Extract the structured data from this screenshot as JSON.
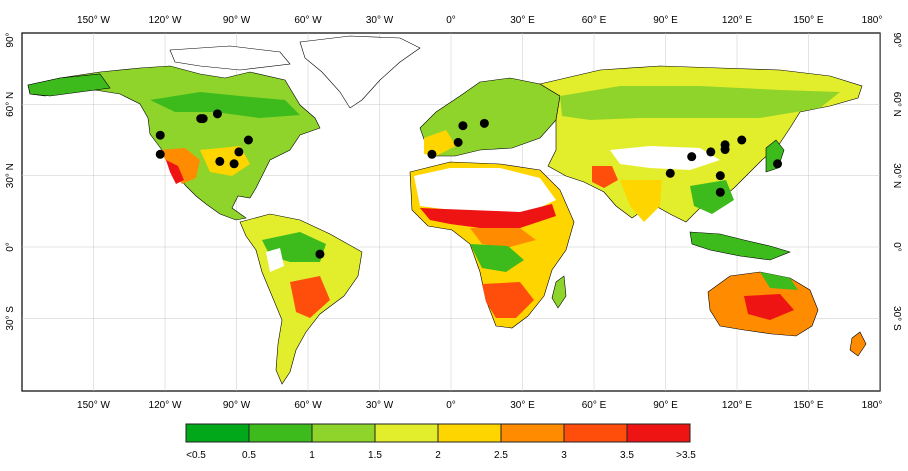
{
  "map": {
    "top_lon_labels": [
      "150° W",
      "120° W",
      "90° W",
      "60° W",
      "30° W",
      "0°",
      "30° E",
      "60° E",
      "90° E",
      "120° E",
      "150° E",
      "180°"
    ],
    "bottom_lon_labels": [
      "150° W",
      "120° W",
      "90° W",
      "60° W",
      "30° W",
      "0°",
      "30° E",
      "60° E",
      "90° E",
      "120° E",
      "150° E",
      "180°"
    ],
    "left_lat_labels": [
      "90°",
      "60° N",
      "30° N",
      "0°",
      "30° S"
    ],
    "right_lat_labels": [
      "90°",
      "60° N",
      "30° N",
      "0°",
      "30° S"
    ]
  },
  "legend": {
    "bins": [
      {
        "color": "#00a81a"
      },
      {
        "color": "#3dbb1d"
      },
      {
        "color": "#8fd42a"
      },
      {
        "color": "#e2ee2c"
      },
      {
        "color": "#ffd500"
      },
      {
        "color": "#ff8c00"
      },
      {
        "color": "#ff4e0c"
      },
      {
        "color": "#ef1414"
      }
    ],
    "labels": [
      "<0.5",
      "0.5",
      "1",
      "1.5",
      "2",
      "2.5",
      "3",
      "3.5",
      ">3.5"
    ]
  },
  "sites": [
    {
      "lon": -122,
      "lat": 47
    },
    {
      "lon": -122,
      "lat": 39
    },
    {
      "lon": -105,
      "lat": 54
    },
    {
      "lon": -104,
      "lat": 54
    },
    {
      "lon": -98,
      "lat": 56
    },
    {
      "lon": -85,
      "lat": 45
    },
    {
      "lon": -89,
      "lat": 40
    },
    {
      "lon": -97,
      "lat": 36
    },
    {
      "lon": -91,
      "lat": 35
    },
    {
      "lon": -55,
      "lat": -3
    },
    {
      "lon": -8,
      "lat": 39
    },
    {
      "lon": 3,
      "lat": 44
    },
    {
      "lon": 5,
      "lat": 51
    },
    {
      "lon": 14,
      "lat": 52
    },
    {
      "lon": 92,
      "lat": 31
    },
    {
      "lon": 101,
      "lat": 38
    },
    {
      "lon": 109,
      "lat": 40
    },
    {
      "lon": 115,
      "lat": 43
    },
    {
      "lon": 115,
      "lat": 41
    },
    {
      "lon": 122,
      "lat": 45
    },
    {
      "lon": 113,
      "lat": 30
    },
    {
      "lon": 113,
      "lat": 23
    },
    {
      "lon": 137,
      "lat": 35
    }
  ]
}
